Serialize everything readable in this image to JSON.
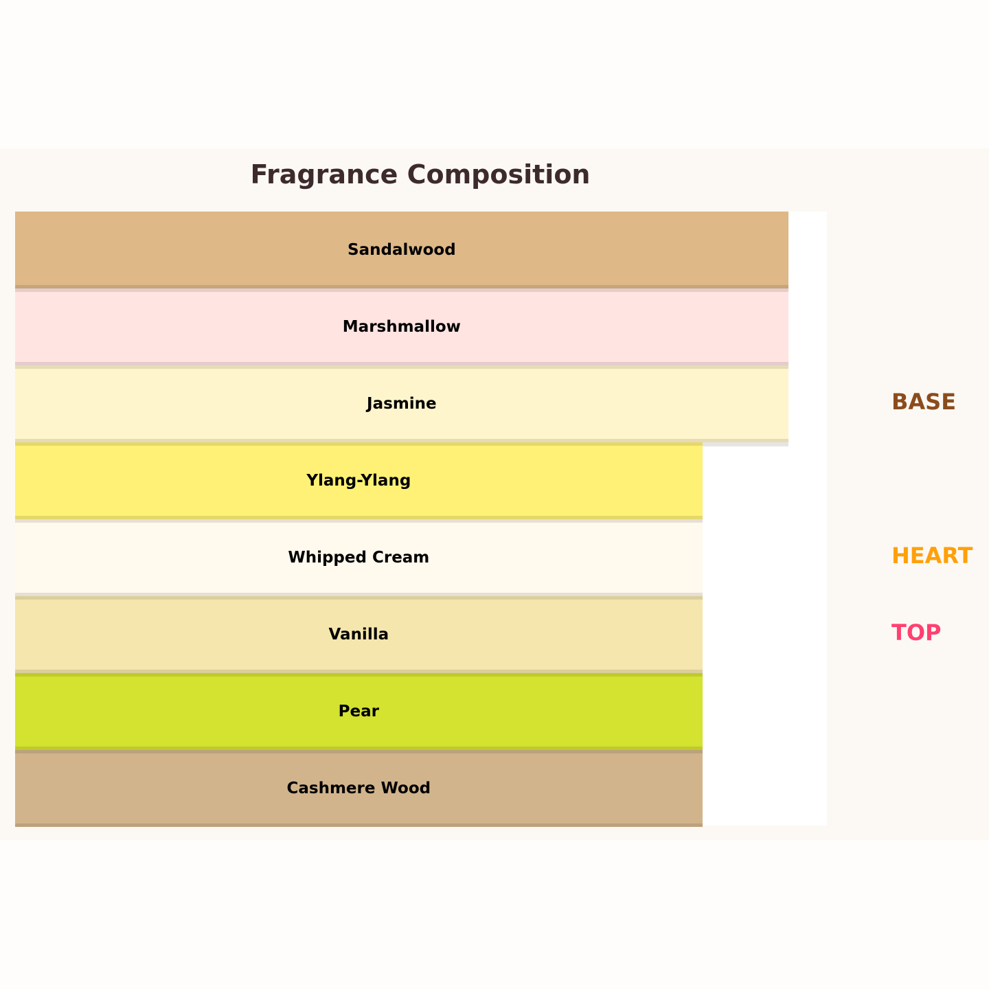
{
  "chart_data": {
    "type": "bar",
    "orientation": "horizontal",
    "title": "Fragrance Composition",
    "categories": [
      "Sandalwood",
      "Marshmallow",
      "Jasmine",
      "Ylang-Ylang",
      "Whipped Cream",
      "Vanilla",
      "Pear",
      "Cashmere Wood"
    ],
    "values": [
      9,
      9,
      9,
      8,
      8,
      8,
      8,
      8
    ],
    "colors": [
      "#deb887",
      "#ffe4e1",
      "#fff5cc",
      "#fff176",
      "#fff9ee",
      "#f5e6ad",
      "#d4e230",
      "#d2b48c"
    ],
    "xlim": [
      0,
      9.45
    ],
    "grid": false,
    "layers": [
      {
        "label": "BASE",
        "color": "#8b4c1c",
        "category": "Jasmine"
      },
      {
        "label": "HEART",
        "color": "#ffa00a",
        "category": "Whipped Cream"
      },
      {
        "label": "TOP",
        "color": "#ff4070",
        "category": "Vanilla"
      }
    ]
  }
}
